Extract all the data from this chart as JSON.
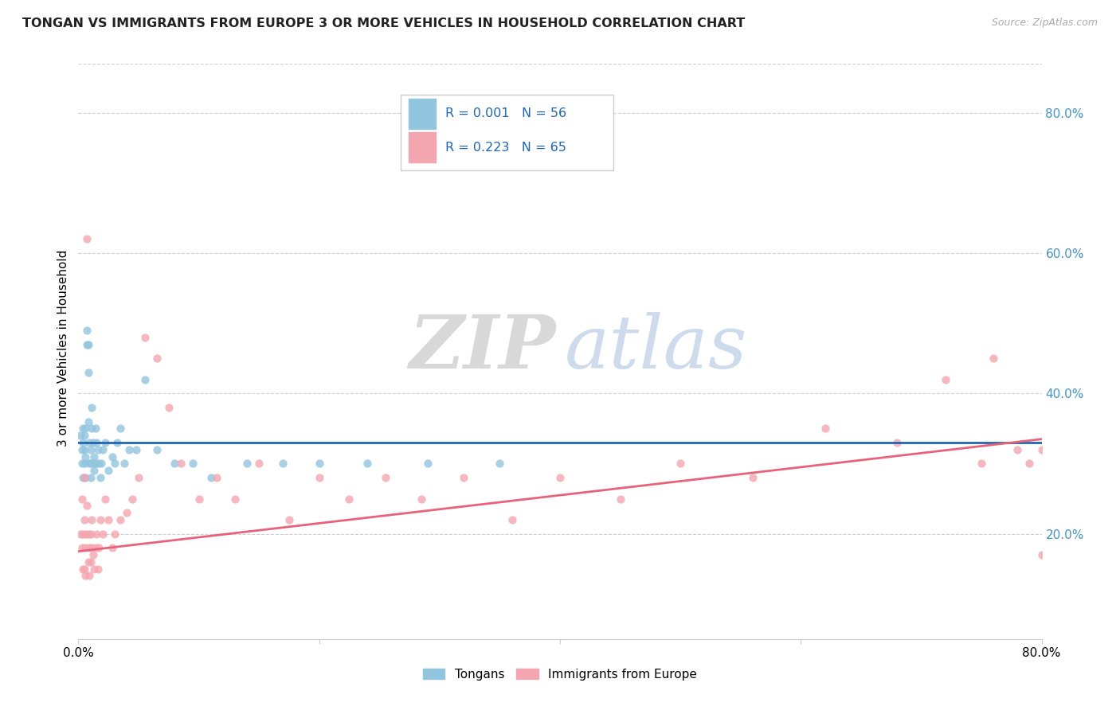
{
  "title": "TONGAN VS IMMIGRANTS FROM EUROPE 3 OR MORE VEHICLES IN HOUSEHOLD CORRELATION CHART",
  "source": "Source: ZipAtlas.com",
  "ylabel": "3 or more Vehicles in Household",
  "ytick_vals": [
    0.2,
    0.4,
    0.6,
    0.8
  ],
  "ytick_labels": [
    "20.0%",
    "40.0%",
    "60.0%",
    "80.0%"
  ],
  "xmin": 0.0,
  "xmax": 0.8,
  "ymin": 0.05,
  "ymax": 0.88,
  "legend_label1": "Tongans",
  "legend_label2": "Immigrants from Europe",
  "r1": "R = 0.001",
  "n1": "N = 56",
  "r2": "R = 0.223",
  "n2": "N = 65",
  "color_blue": "#92c5de",
  "color_pink": "#f4a6b0",
  "line_blue": "#2166ac",
  "line_pink": "#e8637a",
  "watermark_zip": "ZIP",
  "watermark_atlas": "atlas",
  "blue_x": [
    0.002,
    0.003,
    0.003,
    0.004,
    0.004,
    0.004,
    0.005,
    0.005,
    0.005,
    0.006,
    0.006,
    0.006,
    0.007,
    0.007,
    0.008,
    0.008,
    0.008,
    0.009,
    0.009,
    0.01,
    0.01,
    0.01,
    0.011,
    0.011,
    0.012,
    0.012,
    0.013,
    0.013,
    0.014,
    0.015,
    0.015,
    0.016,
    0.017,
    0.018,
    0.019,
    0.02,
    0.022,
    0.025,
    0.028,
    0.03,
    0.032,
    0.035,
    0.038,
    0.042,
    0.048,
    0.055,
    0.065,
    0.08,
    0.095,
    0.11,
    0.14,
    0.17,
    0.2,
    0.24,
    0.29,
    0.35
  ],
  "blue_y": [
    0.34,
    0.3,
    0.32,
    0.28,
    0.33,
    0.35,
    0.3,
    0.32,
    0.34,
    0.28,
    0.31,
    0.35,
    0.47,
    0.49,
    0.43,
    0.47,
    0.36,
    0.3,
    0.33,
    0.28,
    0.3,
    0.32,
    0.35,
    0.38,
    0.3,
    0.33,
    0.29,
    0.31,
    0.35,
    0.3,
    0.33,
    0.32,
    0.3,
    0.28,
    0.3,
    0.32,
    0.33,
    0.29,
    0.31,
    0.3,
    0.33,
    0.35,
    0.3,
    0.32,
    0.32,
    0.42,
    0.32,
    0.3,
    0.3,
    0.28,
    0.3,
    0.3,
    0.3,
    0.3,
    0.3,
    0.3
  ],
  "pink_x": [
    0.002,
    0.003,
    0.003,
    0.004,
    0.004,
    0.005,
    0.005,
    0.005,
    0.006,
    0.006,
    0.006,
    0.007,
    0.007,
    0.008,
    0.008,
    0.009,
    0.009,
    0.01,
    0.01,
    0.011,
    0.011,
    0.012,
    0.013,
    0.014,
    0.015,
    0.016,
    0.017,
    0.018,
    0.02,
    0.022,
    0.025,
    0.028,
    0.03,
    0.035,
    0.04,
    0.045,
    0.05,
    0.055,
    0.065,
    0.075,
    0.085,
    0.1,
    0.115,
    0.13,
    0.15,
    0.175,
    0.2,
    0.225,
    0.255,
    0.285,
    0.32,
    0.36,
    0.4,
    0.45,
    0.5,
    0.56,
    0.62,
    0.68,
    0.72,
    0.76,
    0.78,
    0.8,
    0.8,
    0.79,
    0.75
  ],
  "pink_y": [
    0.2,
    0.25,
    0.18,
    0.15,
    0.2,
    0.28,
    0.22,
    0.15,
    0.2,
    0.14,
    0.18,
    0.62,
    0.24,
    0.16,
    0.2,
    0.14,
    0.18,
    0.16,
    0.2,
    0.18,
    0.22,
    0.17,
    0.15,
    0.18,
    0.2,
    0.15,
    0.18,
    0.22,
    0.2,
    0.25,
    0.22,
    0.18,
    0.2,
    0.22,
    0.23,
    0.25,
    0.28,
    0.48,
    0.45,
    0.38,
    0.3,
    0.25,
    0.28,
    0.25,
    0.3,
    0.22,
    0.28,
    0.25,
    0.28,
    0.25,
    0.28,
    0.22,
    0.28,
    0.25,
    0.3,
    0.28,
    0.35,
    0.33,
    0.42,
    0.45,
    0.32,
    0.32,
    0.17,
    0.3,
    0.3
  ]
}
